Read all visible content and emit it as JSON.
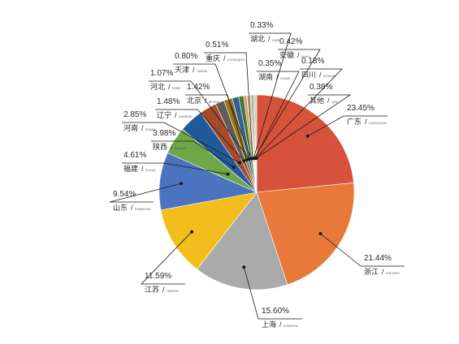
{
  "chart_data": {
    "type": "pie",
    "title": "",
    "unit": "%",
    "slices": [
      {
        "name": "广东",
        "pinyin": "GUANGZHOU",
        "value": 23.45,
        "label": "23.45%",
        "color": "#d6523a"
      },
      {
        "name": "浙江",
        "pinyin": "ZHEJIANG",
        "value": 21.44,
        "label": "21.44%",
        "color": "#e8793a"
      },
      {
        "name": "上海",
        "pinyin": "SHANGHAI",
        "value": 15.6,
        "label": "15.60%",
        "color": "#aaaaaa"
      },
      {
        "name": "江苏",
        "pinyin": "JIANGSU",
        "value": 11.59,
        "label": "11.59%",
        "color": "#f2be1e"
      },
      {
        "name": "山东",
        "pinyin": "SHANDONG",
        "value": 9.54,
        "label": "9.54%",
        "color": "#4a73c0"
      },
      {
        "name": "福建",
        "pinyin": "FUJIAN",
        "value": 4.61,
        "label": "4.61%",
        "color": "#6fa748"
      },
      {
        "name": "陕西",
        "pinyin": "SHAANXI",
        "value": 3.98,
        "label": "3.98%",
        "color": "#1f5a9c"
      },
      {
        "name": "河南",
        "pinyin": "HENAN",
        "value": 2.85,
        "label": "2.85%",
        "color": "#a84a29"
      },
      {
        "name": "辽宁",
        "pinyin": "LIAONING",
        "value": 1.48,
        "label": "1.48%",
        "color": "#5d5d5d"
      },
      {
        "name": "北京",
        "pinyin": "BEIJING",
        "value": 1.42,
        "label": "1.42%",
        "color": "#9c7418"
      },
      {
        "name": "河北",
        "pinyin": "HEBEI",
        "value": 1.07,
        "label": "1.07%",
        "color": "#2f6197"
      },
      {
        "name": "天津",
        "pinyin": "TIANJIN",
        "value": 0.8,
        "label": "0.80%",
        "color": "#3c7a2e"
      },
      {
        "name": "重庆",
        "pinyin": "CHONGQING",
        "value": 0.51,
        "label": "0.51%",
        "color": "#e0966b"
      },
      {
        "name": "湖北",
        "pinyin": "HUBEI",
        "value": 0.33,
        "label": "0.33%",
        "color": "#c9c9c9"
      },
      {
        "name": "安徽",
        "pinyin": "ANHUI",
        "value": 0.42,
        "label": "0.42%",
        "color": "#f5d060"
      },
      {
        "name": "湖南",
        "pinyin": "HUNAN",
        "value": 0.35,
        "label": "0.35%",
        "color": "#7f9fd6"
      },
      {
        "name": "四川",
        "pinyin": "SICHUAN",
        "value": 0.18,
        "label": "0.18%",
        "color": "#96c07a"
      },
      {
        "name": "其他",
        "pinyin": "QITA",
        "value": 0.38,
        "label": "0.38%",
        "color": "#d9c8a0"
      }
    ]
  }
}
